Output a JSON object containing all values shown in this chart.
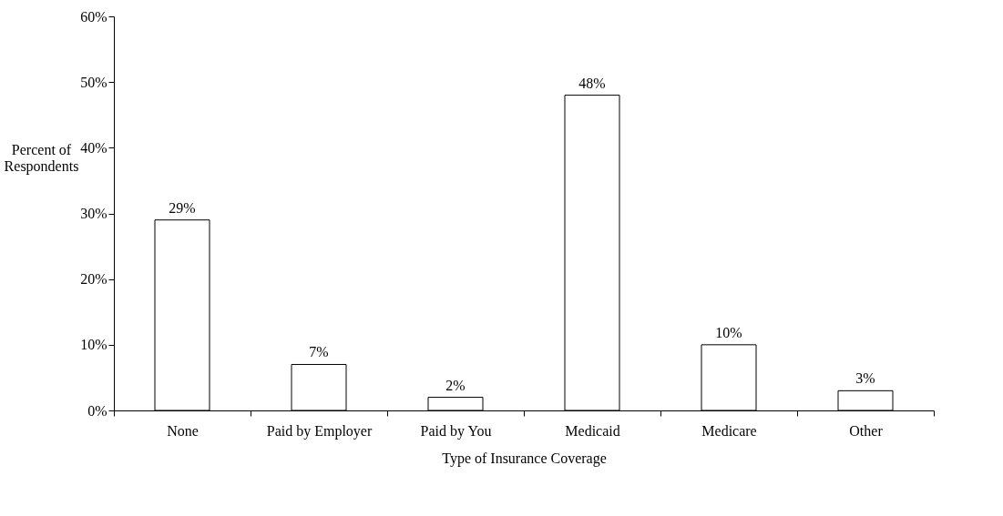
{
  "chart_data": {
    "type": "bar",
    "xlabel": "Type of Insurance Coverage",
    "ylabel": "Percent of Respondents",
    "categories": [
      "None",
      "Paid by Employer",
      "Paid by You",
      "Medicaid",
      "Medicare",
      "Other"
    ],
    "values": [
      29,
      7,
      2,
      48,
      10,
      3
    ],
    "value_labels": [
      "29%",
      "7%",
      "2%",
      "48%",
      "10%",
      "3%"
    ],
    "color": "#ffffff",
    "ylim": [
      0,
      60
    ],
    "yticks": [
      {
        "value": 0,
        "label": "0%"
      },
      {
        "value": 10,
        "label": "10%"
      },
      {
        "value": 20,
        "label": "20%"
      },
      {
        "value": 30,
        "label": "30%"
      },
      {
        "value": 40,
        "label": "40%"
      },
      {
        "value": 50,
        "label": "50%"
      },
      {
        "value": 60,
        "label": "60%"
      }
    ],
    "grid": false
  }
}
